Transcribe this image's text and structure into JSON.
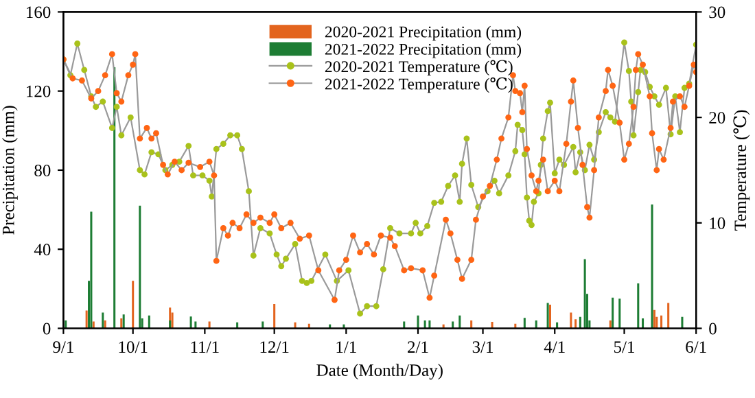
{
  "chart_data": {
    "type": "bar",
    "xlabel": "Date (Month/Day)",
    "ylabel": "Precipitation (mm)",
    "y2label": "Temperature (℃)",
    "xlim": [
      "2021-09-01",
      "2022-06-01"
    ],
    "xticks": [
      {
        "value": "2021-09-01",
        "label": "9/1"
      },
      {
        "value": "2021-10-01",
        "label": "10/1"
      },
      {
        "value": "2021-11-01",
        "label": "11/1"
      },
      {
        "value": "2021-12-01",
        "label": "12/1"
      },
      {
        "value": "2022-01-01",
        "label": "1/1"
      },
      {
        "value": "2022-02-01",
        "label": "2/1"
      },
      {
        "value": "2022-03-01",
        "label": "3/1"
      },
      {
        "value": "2022-04-01",
        "label": "4/1"
      },
      {
        "value": "2022-05-01",
        "label": "5/1"
      },
      {
        "value": "2022-06-01",
        "label": "6/1"
      }
    ],
    "ylim": [
      0,
      160
    ],
    "yticks": [
      0,
      40,
      80,
      120,
      160
    ],
    "y2lim": [
      0,
      30
    ],
    "y2ticks": [
      0,
      10,
      20,
      30
    ],
    "grid": false,
    "legend": "top",
    "marker": "circle",
    "line_style": "solid",
    "series": [
      {
        "name": "2020-2021 Precipitation (mm)",
        "color": "#e3641e",
        "x": [
          "2021-09-11",
          "2021-09-14",
          "2021-09-19",
          "2021-09-26",
          "2021-10-01",
          "2021-10-17",
          "2021-10-18",
          "2021-11-03",
          "2021-12-01",
          "2021-12-10",
          "2021-12-16",
          "2022-02-12",
          "2022-02-24",
          "2022-03-05",
          "2022-03-15",
          "2022-03-30",
          "2022-04-08",
          "2022-04-10",
          "2022-04-25",
          "2022-05-14",
          "2022-05-15",
          "2022-05-17",
          "2022-05-20"
        ],
        "values": [
          9,
          3.5,
          4,
          5,
          24,
          10.5,
          8,
          3.5,
          12.3,
          3,
          2.3,
          2,
          4,
          3.3,
          2.3,
          12,
          8,
          4.6,
          4,
          9.3,
          5.8,
          6.5,
          12.8
        ]
      },
      {
        "name": "2021-2022 Precipitation (mm)",
        "color": "#1d7d34",
        "x": [
          "2021-09-02",
          "2021-09-12",
          "2021-09-13",
          "2021-09-18",
          "2021-09-23",
          "2021-09-27",
          "2021-10-04",
          "2021-10-05",
          "2021-10-08",
          "2021-10-17",
          "2021-10-26",
          "2021-10-28",
          "2021-11-15",
          "2021-11-26",
          "2021-12-25",
          "2021-12-31",
          "2022-01-26",
          "2022-02-01",
          "2022-02-04",
          "2022-02-06",
          "2022-02-16",
          "2022-02-19",
          "2022-03-19",
          "2022-03-24",
          "2022-03-29",
          "2022-04-02",
          "2022-04-12",
          "2022-04-14",
          "2022-04-15",
          "2022-04-16",
          "2022-04-26",
          "2022-04-29",
          "2022-05-07",
          "2022-05-09",
          "2022-05-13",
          "2022-05-26"
        ],
        "values": [
          4,
          24,
          59,
          8,
          132,
          7,
          62,
          5,
          6.5,
          4,
          6,
          3.5,
          3,
          3.5,
          2,
          2,
          3.5,
          6.5,
          4,
          4,
          3.5,
          6.5,
          5.3,
          4,
          12.8,
          3,
          5.8,
          35,
          17.4,
          4,
          15.5,
          15,
          22.7,
          5,
          62.6,
          5.8
        ]
      },
      {
        "name": "2020-2021 Temperature (℃)",
        "type": "line",
        "axis": "y2",
        "color": "#a9c21b",
        "x": [
          "2021-09-01",
          "2021-09-04",
          "2021-09-07",
          "2021-09-10",
          "2021-09-13",
          "2021-09-15",
          "2021-09-18",
          "2021-09-22",
          "2021-09-24",
          "2021-09-26",
          "2021-09-30",
          "2021-10-04",
          "2021-10-06",
          "2021-10-09",
          "2021-10-12",
          "2021-10-15",
          "2021-10-18",
          "2021-10-21",
          "2021-10-25",
          "2021-10-27",
          "2021-10-31",
          "2021-11-03",
          "2021-11-04",
          "2021-11-06",
          "2021-11-09",
          "2021-11-12",
          "2021-11-15",
          "2021-11-17",
          "2021-11-20",
          "2021-11-22",
          "2021-11-25",
          "2021-11-29",
          "2021-12-02",
          "2021-12-04",
          "2021-12-06",
          "2021-12-10",
          "2021-12-13",
          "2021-12-15",
          "2021-12-17",
          "2021-12-23",
          "2021-12-28",
          "2022-01-02",
          "2022-01-07",
          "2022-01-10",
          "2022-01-14",
          "2022-01-17",
          "2022-01-20",
          "2022-01-24",
          "2022-01-29",
          "2022-01-31",
          "2022-02-02",
          "2022-02-05",
          "2022-02-08",
          "2022-02-11",
          "2022-02-14",
          "2022-02-17",
          "2022-02-19",
          "2022-02-20",
          "2022-02-22",
          "2022-02-24",
          "2022-02-27",
          "2022-03-03",
          "2022-03-06",
          "2022-03-08",
          "2022-03-12",
          "2022-03-15",
          "2022-03-16",
          "2022-03-18",
          "2022-03-19",
          "2022-03-20",
          "2022-03-21",
          "2022-03-22",
          "2022-03-23",
          "2022-03-25",
          "2022-03-26",
          "2022-03-27",
          "2022-03-29",
          "2022-03-30",
          "2022-04-01",
          "2022-04-03",
          "2022-04-05",
          "2022-04-09",
          "2022-04-10",
          "2022-04-12",
          "2022-04-14",
          "2022-04-16",
          "2022-04-18",
          "2022-04-20",
          "2022-04-23",
          "2022-04-25",
          "2022-04-27",
          "2022-05-01",
          "2022-05-03",
          "2022-05-04",
          "2022-05-05",
          "2022-05-07",
          "2022-05-08",
          "2022-05-10",
          "2022-05-12",
          "2022-05-14",
          "2022-05-16",
          "2022-05-19",
          "2022-05-21",
          "2022-05-23",
          "2022-05-25",
          "2022-05-27",
          "2022-05-29",
          "2022-06-01"
        ],
        "values": [
          25.5,
          24,
          27,
          24.5,
          22,
          21,
          21.5,
          19,
          21,
          18.3,
          20,
          15,
          14.6,
          16.7,
          16.5,
          15,
          15.5,
          15.8,
          17.3,
          14.5,
          14.5,
          14,
          12.5,
          17,
          17.5,
          18.3,
          18.3,
          17,
          13,
          6.9,
          9.5,
          9,
          7,
          5.9,
          6.6,
          8,
          4.5,
          4.3,
          4.5,
          7,
          4.5,
          5.5,
          1.4,
          2.1,
          2.1,
          5.6,
          9.5,
          9,
          9,
          10,
          9,
          9.7,
          11.9,
          12,
          13.5,
          14.5,
          12,
          15.6,
          18,
          13.6,
          11.5,
          13,
          14,
          12.8,
          14.5,
          16.8,
          19.3,
          18.8,
          16.5,
          12.4,
          10.2,
          9.8,
          12,
          12.8,
          15.5,
          18,
          20.6,
          21.4,
          14.7,
          16,
          15.5,
          17.2,
          14.8,
          16.7,
          15,
          17.4,
          16,
          18.6,
          20.5,
          20,
          19.6,
          27.1,
          24.4,
          21.5,
          18.3,
          22.4,
          24.5,
          24.3,
          22.9,
          22,
          21.2,
          22.8,
          18.4,
          22,
          18.6,
          22.8,
          23.2,
          26.9
        ]
      },
      {
        "name": "2021-2022 Temperature (℃)",
        "type": "line",
        "axis": "y2",
        "color": "#ff6514",
        "x": [
          "2021-09-01",
          "2021-09-05",
          "2021-09-09",
          "2021-09-13",
          "2021-09-16",
          "2021-09-19",
          "2021-09-22",
          "2021-09-24",
          "2021-09-26",
          "2021-09-29",
          "2021-10-01",
          "2021-10-02",
          "2021-10-04",
          "2021-10-07",
          "2021-10-09",
          "2021-10-11",
          "2021-10-14",
          "2021-10-16",
          "2021-10-19",
          "2021-10-22",
          "2021-10-25",
          "2021-10-30",
          "2021-11-03",
          "2021-11-05",
          "2021-11-06",
          "2021-11-09",
          "2021-11-11",
          "2021-11-13",
          "2021-11-16",
          "2021-11-19",
          "2021-11-22",
          "2021-11-25",
          "2021-11-29",
          "2021-12-01",
          "2021-12-04",
          "2021-12-08",
          "2021-12-12",
          "2021-12-16",
          "2021-12-20",
          "2021-12-27",
          "2021-12-29",
          "2022-01-01",
          "2022-01-04",
          "2022-01-07",
          "2022-01-10",
          "2022-01-13",
          "2022-01-16",
          "2022-01-20",
          "2022-01-22",
          "2022-01-26",
          "2022-01-29",
          "2022-02-03",
          "2022-02-06",
          "2022-02-08",
          "2022-02-13",
          "2022-02-15",
          "2022-02-18",
          "2022-02-20",
          "2022-02-24",
          "2022-02-26",
          "2022-03-01",
          "2022-03-04",
          "2022-03-07",
          "2022-03-09",
          "2022-03-12",
          "2022-03-14",
          "2022-03-15",
          "2022-03-17",
          "2022-03-18",
          "2022-03-19",
          "2022-03-20",
          "2022-03-22",
          "2022-03-24",
          "2022-03-25",
          "2022-03-27",
          "2022-03-29",
          "2022-04-01",
          "2022-04-03",
          "2022-04-06",
          "2022-04-08",
          "2022-04-09",
          "2022-04-11",
          "2022-04-13",
          "2022-04-15",
          "2022-04-16",
          "2022-04-18",
          "2022-04-20",
          "2022-04-23",
          "2022-04-24",
          "2022-04-26",
          "2022-04-29",
          "2022-05-01",
          "2022-05-03",
          "2022-05-05",
          "2022-05-06",
          "2022-05-07",
          "2022-05-09",
          "2022-05-12",
          "2022-05-13",
          "2022-05-15",
          "2022-05-16",
          "2022-05-18",
          "2022-05-21",
          "2022-05-22",
          "2022-05-25",
          "2022-05-27",
          "2022-05-29",
          "2022-05-31",
          "2022-06-01"
        ],
        "values": [
          25.5,
          23.7,
          23.5,
          21.8,
          22.5,
          24,
          26,
          22.3,
          21.5,
          24,
          25,
          26,
          18,
          19,
          18,
          18.5,
          15.5,
          14.6,
          15.8,
          15,
          15.7,
          15.3,
          15.8,
          14.5,
          6.4,
          9.5,
          8.8,
          10,
          9.5,
          10.8,
          10,
          10.5,
          10,
          10.8,
          9.5,
          10,
          8.5,
          8.8,
          5.5,
          2.7,
          5.5,
          6.5,
          8.8,
          7.2,
          8,
          7,
          8.8,
          8.6,
          7.8,
          5.5,
          5.7,
          5.5,
          2.9,
          5,
          10.3,
          9,
          6.5,
          4.7,
          6.5,
          10.3,
          12.5,
          13.5,
          16,
          18,
          20,
          24,
          22.5,
          22.3,
          20.5,
          23,
          17,
          14.5,
          13,
          14,
          16,
          13,
          14,
          13,
          17.5,
          21.5,
          23.5,
          19,
          15.5,
          11.5,
          10.5,
          15,
          20,
          22.5,
          24.5,
          23,
          19.5,
          16,
          17.5,
          21,
          24.5,
          26,
          25,
          22,
          18.5,
          15,
          17,
          16,
          19,
          21.5,
          22,
          21,
          23,
          25,
          24.3
        ]
      }
    ]
  }
}
